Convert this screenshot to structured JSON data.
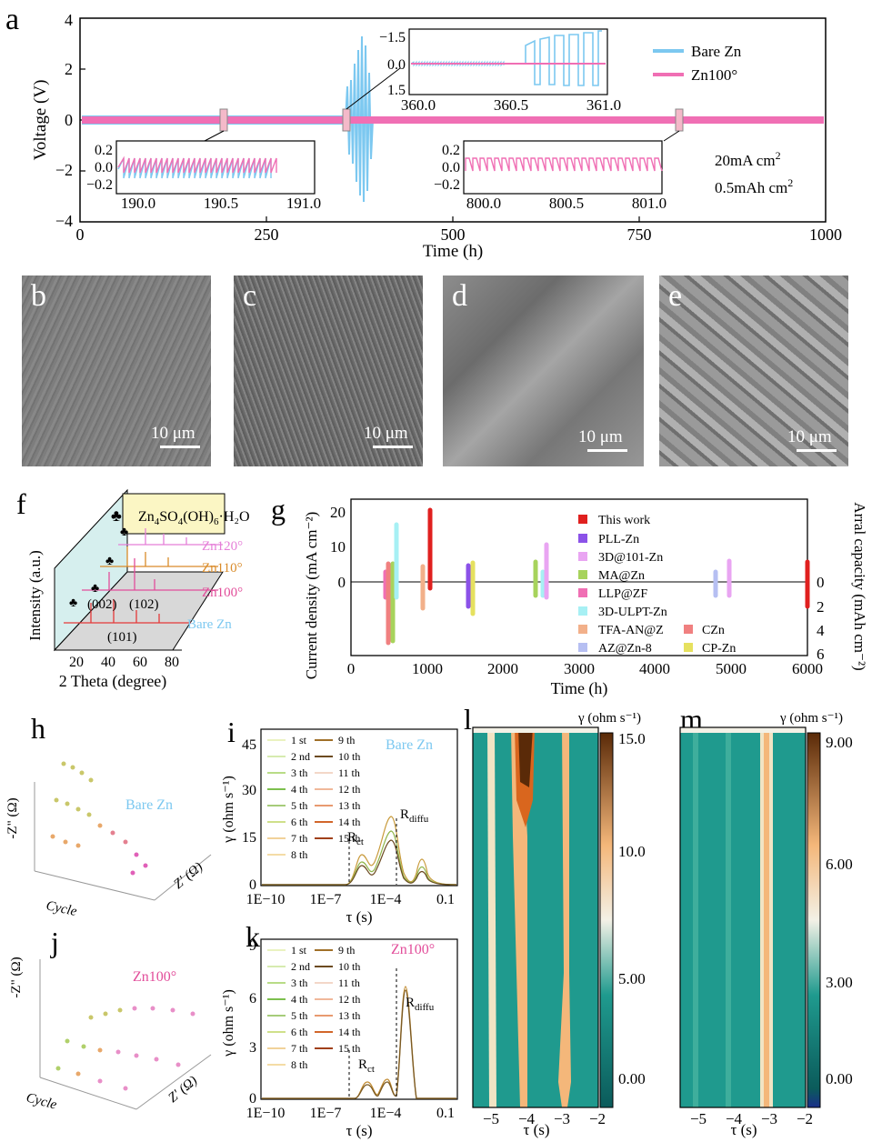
{
  "panels": {
    "a": {
      "letter": "a",
      "ylabel": "Voltage (V)",
      "xlabel": "Time (h)",
      "xticks": [
        "0",
        "250",
        "500",
        "750",
        "1000"
      ],
      "yticks": [
        "4",
        "2",
        "0",
        "−2",
        "−4"
      ],
      "legend": [
        "Bare Zn",
        "Zn100°"
      ],
      "condition_1": "20mA cm",
      "condition_1_sup": "2",
      "condition_2": "0.5mAh cm",
      "condition_2_sup": "2",
      "inset1": {
        "yticks": [
          "0.2",
          "0.0",
          "−0.2"
        ],
        "xticks": [
          "190.0",
          "190.5",
          "191.0"
        ]
      },
      "inset2": {
        "yticks": [
          "−1.5",
          "0.0",
          "1.5"
        ],
        "xticks": [
          "360.0",
          "360.5",
          "361.0"
        ]
      },
      "inset3": {
        "yticks": [
          "0.2",
          "0.0",
          "−0.2"
        ],
        "xticks": [
          "800.0",
          "800.5",
          "801.0"
        ]
      }
    },
    "sem": [
      {
        "letter": "b",
        "scale": "10 μm"
      },
      {
        "letter": "c",
        "scale": "10 μm"
      },
      {
        "letter": "d",
        "scale": "10 μm"
      },
      {
        "letter": "e",
        "scale": "10 μm"
      }
    ],
    "f": {
      "letter": "f",
      "ylabel": "Intensity (a.u.)",
      "xlabel": "2 Theta (degree)",
      "xticks": [
        "20",
        "40",
        "60",
        "80"
      ],
      "legend_symbol": "♣",
      "legend_text": "Zn",
      "legend_sub1": "4",
      "legend_mid1": "SO",
      "legend_sub2": "4",
      "legend_mid2": "(OH)",
      "legend_sub3": "6",
      "legend_end": "·H₂O",
      "samples": [
        "Zn120°",
        "Zn110°",
        "Zn100°",
        "Bare Zn"
      ],
      "peaks": [
        "(002)",
        "(102)",
        "(101)"
      ]
    },
    "g": {
      "letter": "g",
      "ylabel": "Current density (mA cm⁻²)",
      "y2label": "Arral capacity (mAh cm⁻²)",
      "xlabel": "Time (h)",
      "xticks": [
        "0",
        "1000",
        "2000",
        "3000",
        "4000",
        "5000",
        "6000"
      ],
      "yticks": [
        "20",
        "10",
        "0"
      ],
      "y2ticks": [
        "0",
        "2",
        "4",
        "6"
      ],
      "legend": [
        "This work",
        "PLL-Zn",
        "3D@101-Zn",
        "MA@Zn",
        "LLP@ZF",
        "3D-ULPT-Zn",
        "TFA-AN@Z",
        "AZ@Zn-8",
        "CZn",
        "CP-Zn"
      ]
    },
    "h": {
      "letter": "h",
      "label": "Bare Zn",
      "zlabel": "-Z\" (Ω)",
      "xlabel": "Cycle",
      "ylabel": "Z' (Ω)"
    },
    "j": {
      "letter": "j",
      "label": "Zn100°",
      "zlabel": "-Z\" (Ω)",
      "xlabel": "Cycle",
      "ylabel": "Z' (Ω)"
    },
    "i": {
      "letter": "i",
      "label": "Bare Zn",
      "ylabel": "γ (ohm s⁻¹)",
      "xlabel": "τ (s)",
      "yticks": [
        "45",
        "30",
        "15",
        "0"
      ],
      "xticks": [
        "1E−10",
        "1E−7",
        "1E−4",
        "0.1"
      ],
      "rct": "R",
      "rct_sub": "ct",
      "rdiffu": "R",
      "rdiffu_sub": "diffu",
      "legend": [
        "1 st",
        "2 nd",
        "3 th",
        "4 th",
        "5 th",
        "6 th",
        "7 th",
        "8 th",
        "9 th",
        "10 th",
        "11 th",
        "12 th",
        "13 th",
        "14 th",
        "15 th"
      ]
    },
    "k": {
      "letter": "k",
      "label": "Zn100°",
      "ylabel": "γ (ohm s⁻¹)",
      "xlabel": "τ (s)",
      "yticks": [
        "9",
        "6",
        "3",
        "0"
      ],
      "xticks": [
        "1E−10",
        "1E−7",
        "1E−4",
        "0.1"
      ],
      "rct": "R",
      "rct_sub": "ct",
      "rdiffu": "R",
      "rdiffu_sub": "diffu",
      "legend": [
        "1 st",
        "2 nd",
        "3 th",
        "4 th",
        "5 th",
        "6 th",
        "7 th",
        "8 th",
        "9 th",
        "10 th",
        "11 th",
        "12 th",
        "13 th",
        "14 th",
        "15 th"
      ]
    },
    "l": {
      "letter": "l",
      "cbar_label": "γ (ohm s⁻¹)",
      "cbar_ticks": [
        "15.0",
        "10.0",
        "5.00",
        "0.00"
      ],
      "xticks": [
        "−5",
        "−4",
        "−3",
        "−2"
      ],
      "xlabel": "τ (s)"
    },
    "m": {
      "letter": "m",
      "cbar_label": "γ (ohm s⁻¹)",
      "cbar_ticks": [
        "9.00",
        "6.00",
        "3.00",
        "0.00"
      ],
      "xticks": [
        "−5",
        "−4",
        "−3",
        "−2"
      ],
      "xlabel": "τ (s)"
    }
  },
  "colors": {
    "bare": "#7cc8f0",
    "zn100": "#f06fb4",
    "teal": "#1f9a8e",
    "orange": "#d9661e"
  },
  "chart_data": [
    {
      "type": "line",
      "panel": "a",
      "xlabel": "Time (h)",
      "ylabel": "Voltage (V)",
      "xlim": [
        0,
        1000
      ],
      "ylim": [
        -4,
        4
      ],
      "series": [
        {
          "name": "Bare Zn",
          "x": [
            0,
            190,
            340,
            360,
            370,
            380,
            385,
            390
          ],
          "y": [
            0.15,
            0.15,
            0.2,
            1.5,
            3.4,
            -3.2,
            2.5,
            -2.8
          ]
        },
        {
          "name": "Zn100°",
          "x": [
            0,
            250,
            500,
            750,
            1000
          ],
          "y": [
            0.1,
            0.1,
            0.1,
            0.1,
            0.1
          ]
        }
      ]
    },
    {
      "type": "bar",
      "panel": "g",
      "xlabel": "Time (h)",
      "categories": [
        "This work",
        "PLL-Zn",
        "3D@101-Zn",
        "MA@Zn",
        "LLP@ZF",
        "3D-ULPT-Zn",
        "TFA-AN@Z",
        "AZ@Zn-8",
        "CZn",
        "CP-Zn"
      ],
      "series": [
        {
          "name": "Current density",
          "x": [
            1000,
            1500,
            2550,
            2400,
            450,
            530,
            900,
            4800,
            480,
            1580
          ],
          "values": [
            20,
            4,
            10,
            5,
            3,
            15,
            4,
            2,
            5,
            5
          ]
        }
      ]
    }
  ]
}
